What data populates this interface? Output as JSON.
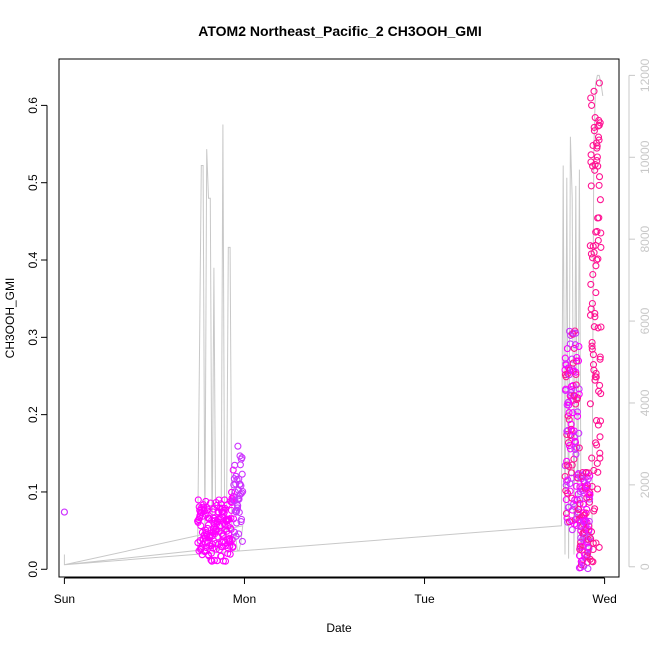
{
  "chart_data": {
    "type": "scatter",
    "title": "ATOM2 Northeast_Pacific_2 CH3OOH_GMI",
    "xlabel": "Date",
    "ylabel": "CH3OOH_GMI",
    "x_ticks": [
      "Sun",
      "Mon",
      "Tue",
      "Wed"
    ],
    "xlim_days": [
      -0.03,
      3.08
    ],
    "ylim": [
      -0.01,
      0.66
    ],
    "y_ticks": [
      0.0,
      0.1,
      0.2,
      0.3,
      0.4,
      0.5,
      0.6
    ],
    "y2lim": [
      -250,
      12400
    ],
    "y2_ticks": [
      0,
      2000,
      4000,
      6000,
      8000,
      10000,
      12000
    ],
    "grid": false,
    "colors": {
      "axis": "#000000",
      "right_axis": "#c8c8c8",
      "altitude_line": "#c8c8c8",
      "point_magenta": "#ff00ff",
      "point_pink": "#ff1493",
      "point_purple": "#cc33ff"
    },
    "series": [
      {
        "kind": "points",
        "axis": "left",
        "x_days": [
          0.0
        ],
        "values": [
          0.074
        ]
      },
      {
        "kind": "points",
        "axis": "left",
        "clusters": [
          {
            "x_start": 0.74,
            "x_end": 0.99,
            "y_min": 0.01,
            "y_max": 0.17,
            "count": 200
          },
          {
            "x_start": 2.78,
            "x_end": 2.98,
            "y_min": 0.0,
            "y_max": 0.63,
            "count": 320
          }
        ]
      },
      {
        "kind": "line",
        "axis": "right",
        "x_days": [
          0.0,
          0.0,
          0.74,
          0.76,
          0.77,
          0.78,
          0.79,
          0.8,
          0.81,
          0.82,
          0.83,
          0.84,
          0.85,
          0.86,
          0.87,
          0.88,
          0.89,
          0.9,
          0.91,
          0.92,
          0.93,
          0.94,
          0.95,
          0.96,
          0.97,
          0.98,
          0.99,
          0.0,
          2.76,
          2.77,
          2.78,
          2.79,
          2.8,
          2.81,
          2.82,
          2.83,
          2.84,
          2.85,
          2.86,
          2.87,
          2.88,
          2.89,
          2.9,
          2.91,
          2.92,
          2.93,
          2.94,
          2.95,
          2.96,
          2.97,
          2.98,
          2.99
        ],
        "values": [
          300,
          50,
          400,
          9800,
          9800,
          600,
          10200,
          9000,
          9000,
          500,
          7300,
          800,
          400,
          700,
          700,
          10800,
          600,
          800,
          7800,
          7800,
          500,
          600,
          800,
          400,
          400,
          600,
          1000,
          50,
          1000,
          9800,
          300,
          9500,
          200,
          10500,
          9000,
          300,
          9300,
          200,
          9700,
          300,
          800,
          400,
          1200,
          600,
          200,
          1000,
          10200,
          11800,
          12000,
          12000,
          11800,
          11500
        ]
      }
    ]
  }
}
